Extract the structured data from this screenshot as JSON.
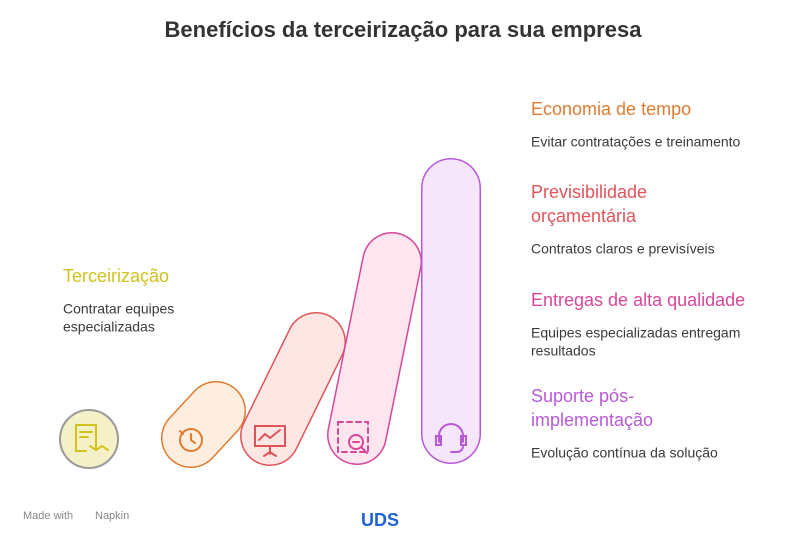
{
  "title": "Benefícios da terceirização para sua empresa",
  "items": [
    {
      "title": [
        "Terceirização"
      ],
      "description": [
        "Contratar equipes",
        "especializadas"
      ],
      "color": "#d1c21e"
    },
    {
      "title": [
        "Economia de tempo"
      ],
      "description": [
        "Evitar contratações e treinamento"
      ],
      "color": "#e07b30"
    },
    {
      "title": [
        "Previsibilidade",
        "orçamentária"
      ],
      "description": [
        "Contratos claros e previsíveis"
      ],
      "color": "#e0545a"
    },
    {
      "title": [
        "Entregas de alta qualidade"
      ],
      "description": [
        "Equipes especializadas entregam",
        "resultados"
      ],
      "color": "#d9479a"
    },
    {
      "title": [
        "Suporte pós-",
        "implementação"
      ],
      "description": [
        "Evolução contínua da solução"
      ],
      "color": "#b85ad8"
    }
  ],
  "footer": {
    "credit": "Made with",
    "brand": "Napkin",
    "logo": "UDS"
  }
}
